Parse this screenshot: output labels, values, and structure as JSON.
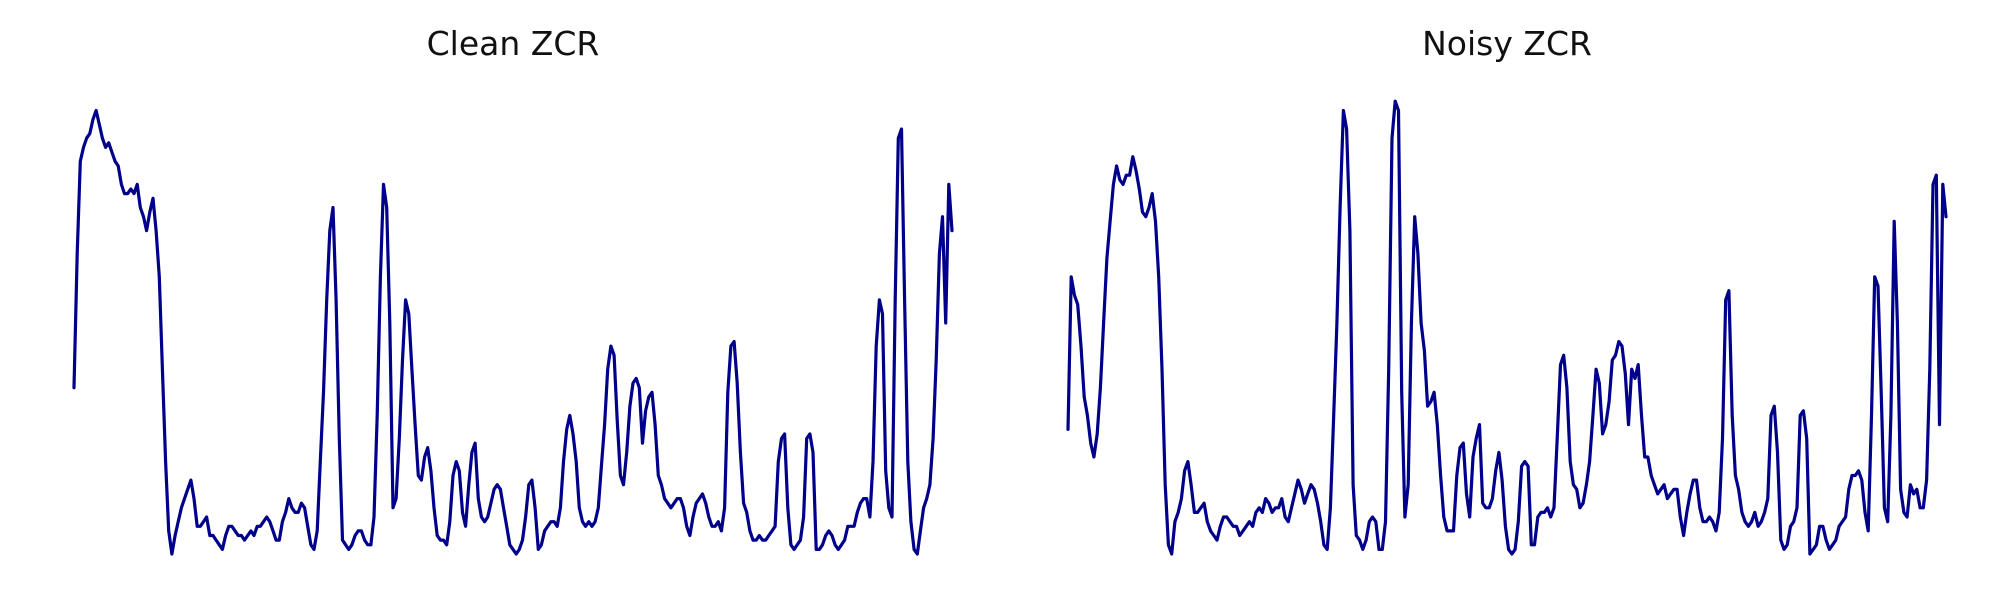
{
  "figure": {
    "panels": [
      {
        "title": "Clean ZCR"
      },
      {
        "title": "Noisy ZCR"
      }
    ]
  },
  "chart_data": [
    {
      "type": "line",
      "title": "Clean ZCR",
      "xlabel": "",
      "ylabel": "",
      "grid": false,
      "axes_visible": false,
      "ylim": [
        0,
        1
      ],
      "series": [
        {
          "color": "#00008b",
          "y": [
            0.36,
            0.65,
            0.85,
            0.88,
            0.9,
            0.91,
            0.94,
            0.96,
            0.93,
            0.9,
            0.88,
            0.89,
            0.87,
            0.85,
            0.84,
            0.8,
            0.78,
            0.78,
            0.79,
            0.78,
            0.8,
            0.75,
            0.73,
            0.7,
            0.74,
            0.77,
            0.7,
            0.6,
            0.4,
            0.2,
            0.05,
            0.0,
            0.04,
            0.07,
            0.1,
            0.12,
            0.14,
            0.16,
            0.12,
            0.06,
            0.06,
            0.07,
            0.08,
            0.04,
            0.04,
            0.03,
            0.02,
            0.01,
            0.04,
            0.06,
            0.06,
            0.05,
            0.04,
            0.04,
            0.03,
            0.04,
            0.05,
            0.04,
            0.06,
            0.06,
            0.07,
            0.08,
            0.07,
            0.05,
            0.03,
            0.03,
            0.07,
            0.09,
            0.12,
            0.1,
            0.09,
            0.09,
            0.11,
            0.1,
            0.06,
            0.02,
            0.01,
            0.05,
            0.2,
            0.35,
            0.55,
            0.7,
            0.75,
            0.55,
            0.25,
            0.03,
            0.02,
            0.01,
            0.02,
            0.04,
            0.05,
            0.05,
            0.03,
            0.02,
            0.02,
            0.08,
            0.3,
            0.6,
            0.8,
            0.75,
            0.5,
            0.1,
            0.12,
            0.25,
            0.42,
            0.55,
            0.52,
            0.4,
            0.28,
            0.17,
            0.16,
            0.21,
            0.23,
            0.18,
            0.1,
            0.04,
            0.03,
            0.03,
            0.02,
            0.07,
            0.17,
            0.2,
            0.18,
            0.09,
            0.06,
            0.15,
            0.22,
            0.24,
            0.12,
            0.08,
            0.07,
            0.08,
            0.11,
            0.14,
            0.15,
            0.14,
            0.1,
            0.06,
            0.02,
            0.01,
            0.0,
            0.01,
            0.03,
            0.08,
            0.15,
            0.16,
            0.1,
            0.01,
            0.02,
            0.05,
            0.06,
            0.07,
            0.07,
            0.06,
            0.1,
            0.2,
            0.27,
            0.3,
            0.26,
            0.2,
            0.1,
            0.07,
            0.06,
            0.07,
            0.06,
            0.07,
            0.1,
            0.19,
            0.28,
            0.4,
            0.45,
            0.43,
            0.29,
            0.17,
            0.15,
            0.22,
            0.32,
            0.37,
            0.38,
            0.36,
            0.24,
            0.31,
            0.34,
            0.35,
            0.28,
            0.17,
            0.15,
            0.12,
            0.11,
            0.1,
            0.11,
            0.12,
            0.12,
            0.1,
            0.06,
            0.04,
            0.08,
            0.11,
            0.12,
            0.13,
            0.11,
            0.08,
            0.06,
            0.06,
            0.07,
            0.05,
            0.1,
            0.35,
            0.45,
            0.46,
            0.37,
            0.22,
            0.11,
            0.09,
            0.05,
            0.03,
            0.03,
            0.04,
            0.03,
            0.03,
            0.04,
            0.05,
            0.06,
            0.2,
            0.25,
            0.26,
            0.1,
            0.02,
            0.01,
            0.02,
            0.03,
            0.08,
            0.25,
            0.26,
            0.22,
            0.01,
            0.01,
            0.02,
            0.04,
            0.05,
            0.04,
            0.02,
            0.01,
            0.02,
            0.03,
            0.06,
            0.06,
            0.06,
            0.09,
            0.11,
            0.12,
            0.12,
            0.08,
            0.2,
            0.45,
            0.55,
            0.52,
            0.18,
            0.1,
            0.08,
            0.55,
            0.9,
            0.92,
            0.55,
            0.2,
            0.07,
            0.01,
            0.0,
            0.05,
            0.1,
            0.12,
            0.15,
            0.25,
            0.42,
            0.65,
            0.73,
            0.5,
            0.8,
            0.7
          ]
        }
      ]
    },
    {
      "type": "line",
      "title": "Noisy ZCR",
      "xlabel": "",
      "ylabel": "",
      "grid": false,
      "axes_visible": false,
      "ylim": [
        0,
        1
      ],
      "series": [
        {
          "color": "#00008b",
          "y": [
            0.27,
            0.6,
            0.56,
            0.54,
            0.45,
            0.34,
            0.3,
            0.24,
            0.21,
            0.26,
            0.36,
            0.5,
            0.64,
            0.72,
            0.8,
            0.84,
            0.81,
            0.8,
            0.82,
            0.82,
            0.86,
            0.83,
            0.79,
            0.74,
            0.73,
            0.75,
            0.78,
            0.72,
            0.6,
            0.4,
            0.15,
            0.02,
            0.0,
            0.07,
            0.09,
            0.12,
            0.18,
            0.2,
            0.15,
            0.09,
            0.09,
            0.1,
            0.11,
            0.07,
            0.05,
            0.04,
            0.03,
            0.06,
            0.08,
            0.08,
            0.07,
            0.06,
            0.06,
            0.04,
            0.05,
            0.06,
            0.07,
            0.06,
            0.09,
            0.1,
            0.09,
            0.12,
            0.11,
            0.09,
            0.1,
            0.1,
            0.12,
            0.08,
            0.07,
            0.1,
            0.13,
            0.16,
            0.14,
            0.11,
            0.13,
            0.15,
            0.14,
            0.11,
            0.07,
            0.02,
            0.01,
            0.1,
            0.3,
            0.5,
            0.75,
            0.96,
            0.92,
            0.7,
            0.15,
            0.04,
            0.03,
            0.01,
            0.03,
            0.07,
            0.08,
            0.07,
            0.01,
            0.01,
            0.07,
            0.4,
            0.9,
            0.98,
            0.96,
            0.35,
            0.08,
            0.15,
            0.5,
            0.73,
            0.65,
            0.5,
            0.44,
            0.32,
            0.33,
            0.35,
            0.28,
            0.17,
            0.08,
            0.05,
            0.05,
            0.05,
            0.17,
            0.23,
            0.24,
            0.13,
            0.08,
            0.21,
            0.25,
            0.28,
            0.11,
            0.1,
            0.1,
            0.12,
            0.18,
            0.22,
            0.16,
            0.06,
            0.01,
            0.0,
            0.01,
            0.07,
            0.19,
            0.2,
            0.19,
            0.02,
            0.02,
            0.08,
            0.09,
            0.09,
            0.1,
            0.08,
            0.1,
            0.25,
            0.41,
            0.43,
            0.36,
            0.2,
            0.15,
            0.14,
            0.1,
            0.11,
            0.15,
            0.2,
            0.3,
            0.4,
            0.37,
            0.26,
            0.28,
            0.33,
            0.42,
            0.43,
            0.46,
            0.45,
            0.39,
            0.28,
            0.4,
            0.38,
            0.41,
            0.3,
            0.21,
            0.21,
            0.17,
            0.15,
            0.13,
            0.14,
            0.15,
            0.12,
            0.13,
            0.14,
            0.14,
            0.08,
            0.04,
            0.09,
            0.13,
            0.16,
            0.16,
            0.1,
            0.07,
            0.07,
            0.08,
            0.07,
            0.05,
            0.09,
            0.25,
            0.55,
            0.57,
            0.3,
            0.17,
            0.14,
            0.09,
            0.07,
            0.06,
            0.07,
            0.09,
            0.06,
            0.07,
            0.09,
            0.12,
            0.3,
            0.32,
            0.22,
            0.03,
            0.01,
            0.02,
            0.06,
            0.07,
            0.1,
            0.3,
            0.31,
            0.25,
            0.0,
            0.01,
            0.02,
            0.06,
            0.06,
            0.03,
            0.01,
            0.02,
            0.03,
            0.06,
            0.07,
            0.08,
            0.14,
            0.17,
            0.17,
            0.18,
            0.16,
            0.09,
            0.05,
            0.3,
            0.6,
            0.58,
            0.35,
            0.1,
            0.07,
            0.3,
            0.72,
            0.5,
            0.14,
            0.09,
            0.08,
            0.15,
            0.13,
            0.14,
            0.1,
            0.1,
            0.16,
            0.4,
            0.8,
            0.82,
            0.28,
            0.8,
            0.73
          ]
        }
      ]
    }
  ]
}
